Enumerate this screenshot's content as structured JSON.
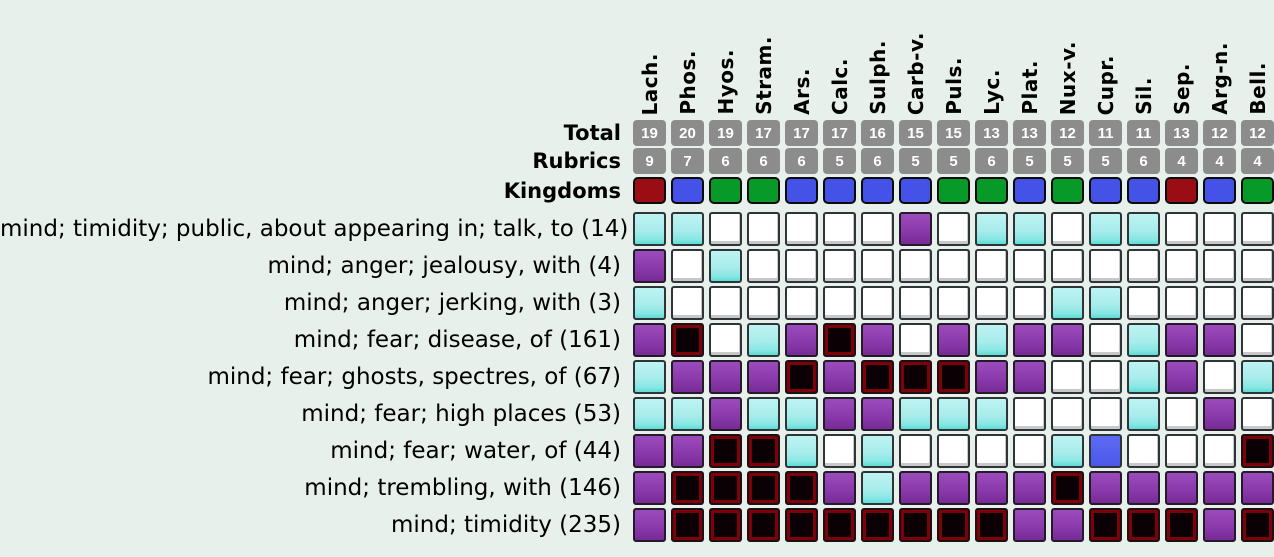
{
  "colors": {
    "background": "#e7f0ea",
    "stat_cell_bg": "#8c8c8c",
    "stat_cell_text": "#ffffff",
    "kingdom": {
      "animal": "#9b0d14",
      "mineral": "#4452e8",
      "plant": "#089a28"
    },
    "grades": {
      "empty": "#ffffff",
      "grade1_cyan": "#a8eceb",
      "grade2_purple": "#8b3aac",
      "grade3_black": "#0b0105",
      "grade3_ring": "#7e0008",
      "grade4_blue": "#4a58ea"
    }
  },
  "remedies": [
    "Lach.",
    "Phos.",
    "Hyos.",
    "Stram.",
    "Ars.",
    "Calc.",
    "Sulph.",
    "Carb-v.",
    "Puls.",
    "Lyc.",
    "Plat.",
    "Nux-v.",
    "Cupr.",
    "Sil.",
    "Sep.",
    "Arg-n.",
    "Bell."
  ],
  "stats": {
    "total_label": "Total",
    "rubrics_label": "Rubrics",
    "kingdoms_label": "Kingdoms",
    "totals": [
      19,
      20,
      19,
      17,
      17,
      17,
      16,
      15,
      15,
      13,
      13,
      12,
      11,
      11,
      13,
      12,
      12
    ],
    "rubrics": [
      9,
      7,
      6,
      6,
      6,
      5,
      6,
      5,
      5,
      6,
      5,
      5,
      5,
      6,
      4,
      4,
      4
    ],
    "kingdoms": [
      "animal",
      "mineral",
      "plant",
      "plant",
      "mineral",
      "mineral",
      "mineral",
      "mineral",
      "plant",
      "plant",
      "mineral",
      "plant",
      "mineral",
      "mineral",
      "animal",
      "mineral",
      "plant"
    ]
  },
  "rubrics": [
    {
      "label": "mind; timidity; public, about appearing in; talk, to (14)",
      "grades": [
        1,
        1,
        0,
        0,
        0,
        0,
        0,
        2,
        0,
        1,
        1,
        0,
        1,
        1,
        0,
        0,
        0
      ]
    },
    {
      "label": "mind; anger; jealousy, with (4)",
      "grades": [
        2,
        0,
        1,
        0,
        0,
        0,
        0,
        0,
        0,
        0,
        0,
        0,
        0,
        0,
        0,
        0,
        0
      ]
    },
    {
      "label": "mind; anger; jerking, with (3)",
      "grades": [
        1,
        0,
        0,
        0,
        0,
        0,
        0,
        0,
        0,
        0,
        0,
        1,
        1,
        0,
        0,
        0,
        0
      ]
    },
    {
      "label": "mind; fear; disease, of (161)",
      "grades": [
        2,
        3,
        0,
        1,
        2,
        3,
        2,
        0,
        2,
        1,
        2,
        2,
        0,
        1,
        2,
        2,
        0
      ]
    },
    {
      "label": "mind; fear; ghosts, spectres, of (67)",
      "grades": [
        1,
        2,
        2,
        2,
        3,
        2,
        3,
        3,
        3,
        2,
        2,
        0,
        0,
        1,
        2,
        0,
        1
      ]
    },
    {
      "label": "mind; fear; high places (53)",
      "grades": [
        1,
        1,
        2,
        1,
        1,
        2,
        2,
        1,
        1,
        1,
        0,
        0,
        0,
        1,
        0,
        2,
        0
      ]
    },
    {
      "label": "mind; fear; water, of (44)",
      "grades": [
        2,
        2,
        3,
        3,
        1,
        0,
        1,
        0,
        0,
        0,
        0,
        1,
        4,
        0,
        0,
        0,
        3
      ]
    },
    {
      "label": "mind; trembling, with (146)",
      "grades": [
        2,
        3,
        3,
        3,
        3,
        2,
        1,
        2,
        2,
        2,
        2,
        3,
        2,
        2,
        2,
        2,
        2
      ]
    },
    {
      "label": "mind; timidity (235)",
      "grades": [
        2,
        3,
        3,
        3,
        3,
        3,
        3,
        3,
        3,
        3,
        2,
        2,
        3,
        3,
        3,
        2,
        3
      ]
    }
  ]
}
